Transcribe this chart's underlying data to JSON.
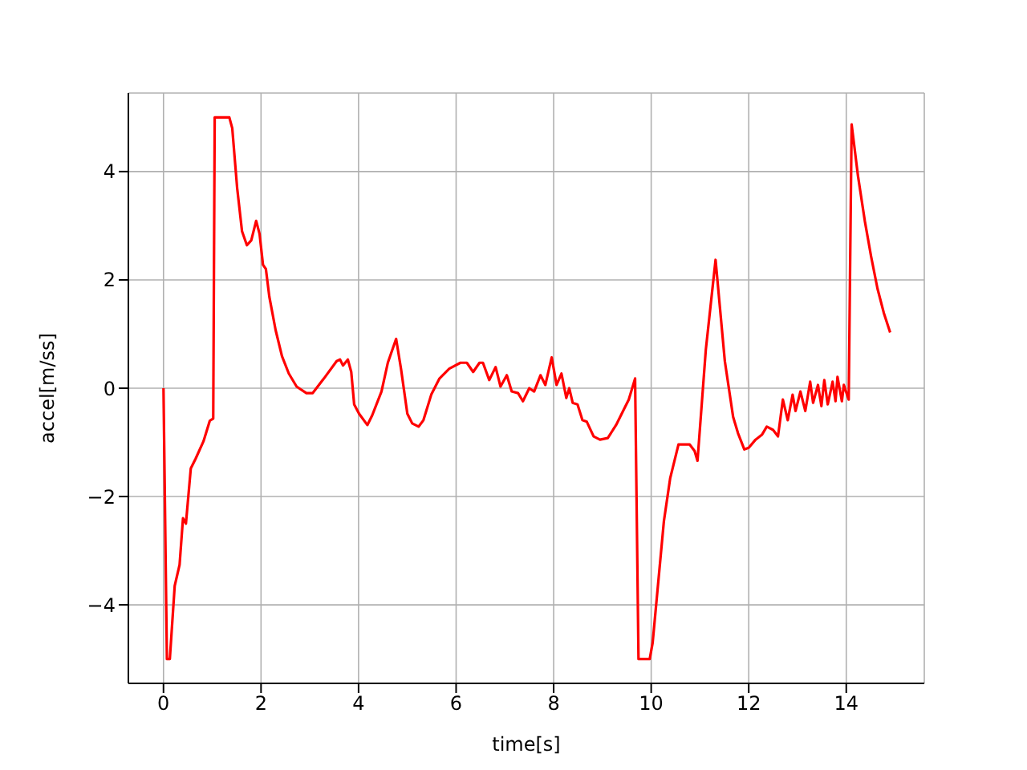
{
  "chart_data": {
    "type": "line",
    "xlabel": "time[s]",
    "ylabel": "accel[m/ss]",
    "xlim": [
      -0.72,
      15.6
    ],
    "ylim": [
      -5.45,
      5.45
    ],
    "xticks": [
      0,
      2,
      4,
      6,
      8,
      10,
      12,
      14
    ],
    "yticks": [
      {
        "value": -4,
        "label": "−4"
      },
      {
        "value": -2,
        "label": "−2"
      },
      0,
      2,
      4
    ],
    "grid": true,
    "legend": false,
    "marker": "none",
    "line_style": "solid",
    "series": [
      {
        "color": "#ff0000",
        "x": [
          0,
          0.07,
          0.13,
          0.23,
          0.33,
          0.4,
          0.46,
          0.56,
          0.66,
          0.82,
          0.95,
          1.02,
          1.05,
          1.35,
          1.41,
          1.51,
          1.61,
          1.71,
          1.8,
          1.9,
          1.97,
          2.04,
          2.1,
          2.17,
          2.3,
          2.43,
          2.57,
          2.73,
          2.93,
          3.06,
          3.29,
          3.55,
          3.62,
          3.68,
          3.78,
          3.85,
          3.91,
          4.01,
          4.18,
          4.28,
          4.47,
          4.6,
          4.77,
          4.87,
          5,
          5.1,
          5.23,
          5.33,
          5.49,
          5.66,
          5.86,
          6.09,
          6.22,
          6.35,
          6.48,
          6.55,
          6.68,
          6.81,
          6.91,
          7.04,
          7.14,
          7.27,
          7.37,
          7.5,
          7.6,
          7.73,
          7.83,
          7.96,
          8.06,
          8.16,
          8.26,
          8.32,
          8.39,
          8.49,
          8.59,
          8.68,
          8.82,
          8.95,
          9.11,
          9.28,
          9.54,
          9.67,
          9.74,
          9.97,
          10.03,
          10.26,
          10.39,
          10.56,
          10.79,
          10.89,
          10.95,
          11.12,
          11.32,
          11.51,
          11.68,
          11.78,
          11.91,
          12,
          12.14,
          12.27,
          12.37,
          12.5,
          12.6,
          12.7,
          12.8,
          12.9,
          12.96,
          13.06,
          13.16,
          13.26,
          13.32,
          13.42,
          13.49,
          13.55,
          13.62,
          13.72,
          13.78,
          13.82,
          13.91,
          13.95,
          14.05,
          14.11,
          14.24,
          14.38,
          14.51,
          14.64,
          14.77,
          14.9
        ],
        "values": [
          0,
          -5,
          -5,
          -3.65,
          -3.26,
          -2.4,
          -2.5,
          -1.48,
          -1.3,
          -0.98,
          -0.6,
          -0.56,
          5,
          5,
          4.8,
          3.7,
          2.9,
          2.64,
          2.73,
          3.09,
          2.85,
          2.28,
          2.2,
          1.69,
          1.07,
          0.59,
          0.27,
          0.03,
          -0.09,
          -0.09,
          0.18,
          0.5,
          0.53,
          0.42,
          0.53,
          0.3,
          -0.3,
          -0.47,
          -0.68,
          -0.5,
          -0.06,
          0.47,
          0.91,
          0.36,
          -0.47,
          -0.65,
          -0.71,
          -0.59,
          -0.12,
          0.18,
          0.36,
          0.47,
          0.47,
          0.3,
          0.47,
          0.47,
          0.15,
          0.39,
          0.03,
          0.24,
          -0.06,
          -0.09,
          -0.24,
          0,
          -0.06,
          0.24,
          0.06,
          0.57,
          0.06,
          0.27,
          -0.18,
          0,
          -0.27,
          -0.3,
          -0.59,
          -0.62,
          -0.89,
          -0.95,
          -0.92,
          -0.68,
          -0.21,
          0.18,
          -5,
          -5,
          -4.7,
          -2.46,
          -1.66,
          -1.04,
          -1.04,
          -1.16,
          -1.34,
          0.71,
          2.37,
          0.5,
          -0.53,
          -0.83,
          -1.13,
          -1.1,
          -0.95,
          -0.86,
          -0.71,
          -0.77,
          -0.89,
          -0.21,
          -0.59,
          -0.12,
          -0.42,
          -0.06,
          -0.42,
          0.12,
          -0.27,
          0.06,
          -0.33,
          0.15,
          -0.3,
          0.12,
          -0.24,
          0.21,
          -0.24,
          0.06,
          -0.21,
          4.87,
          3.92,
          3.09,
          2.43,
          1.84,
          1.39,
          1.03
        ]
      }
    ]
  }
}
